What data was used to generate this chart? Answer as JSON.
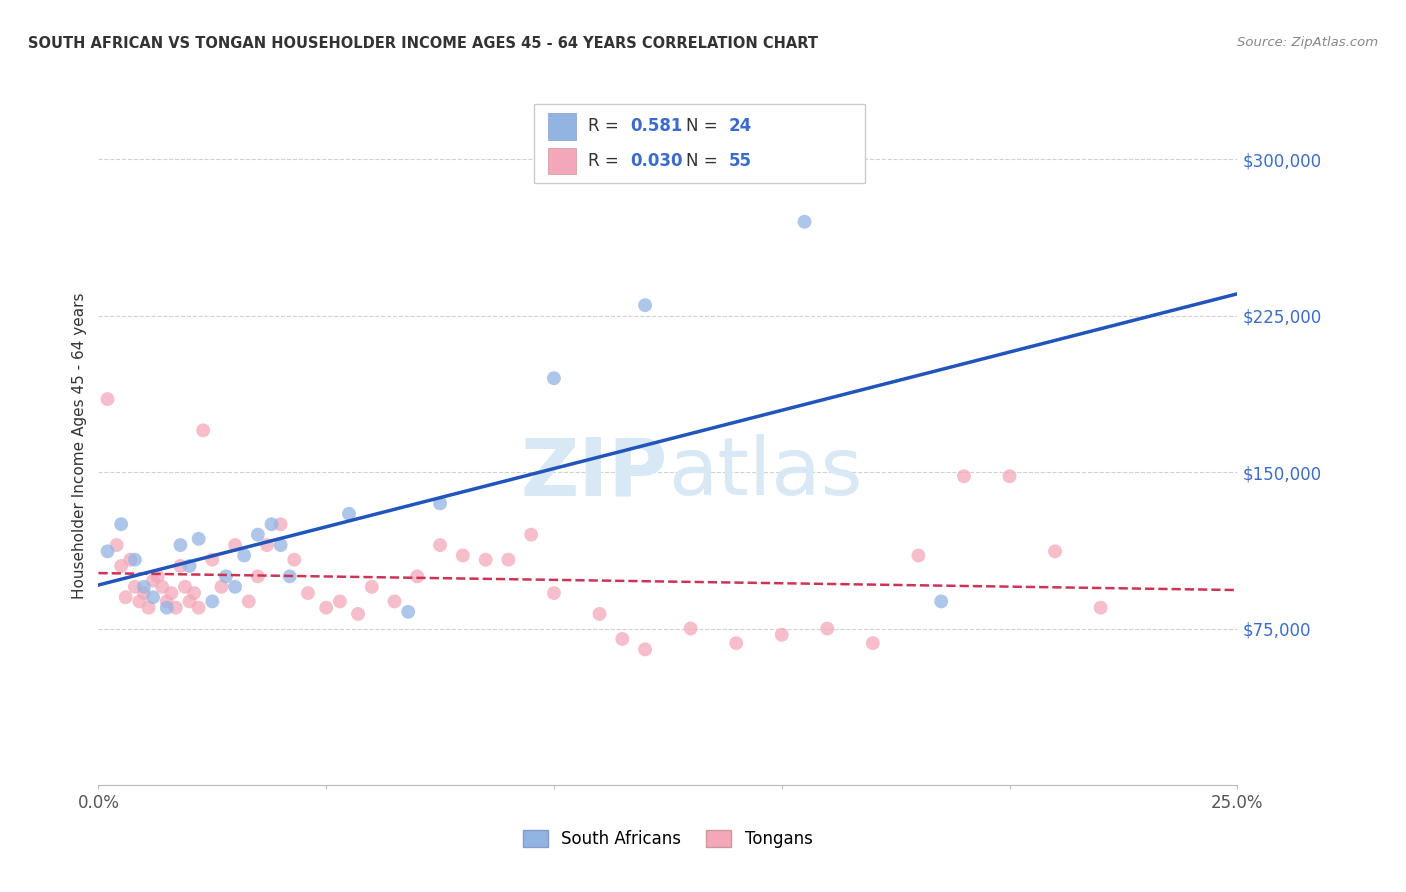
{
  "title": "SOUTH AFRICAN VS TONGAN HOUSEHOLDER INCOME AGES 45 - 64 YEARS CORRELATION CHART",
  "source": "Source: ZipAtlas.com",
  "ylabel": "Householder Income Ages 45 - 64 years",
  "xlim": [
    0.0,
    0.25
  ],
  "ylim": [
    0,
    325000
  ],
  "yticks": [
    0,
    75000,
    150000,
    225000,
    300000
  ],
  "ytick_labels": [
    "",
    "$75,000",
    "$150,000",
    "$225,000",
    "$300,000"
  ],
  "sa_label": "South Africans",
  "to_label": "Tongans",
  "blue_color": "#92B4E3",
  "pink_color": "#F4A7B9",
  "line_blue": "#2255BB",
  "line_pink": "#CC3355",
  "legend_r1_text": "R = ",
  "legend_r1_val": "0.581",
  "legend_n1_text": "N = ",
  "legend_n1_val": "24",
  "legend_r2_text": "R = ",
  "legend_r2_val": "0.030",
  "legend_n2_text": "N = ",
  "legend_n2_val": "55",
  "sa_x": [
    0.002,
    0.005,
    0.008,
    0.01,
    0.012,
    0.015,
    0.018,
    0.02,
    0.022,
    0.025,
    0.028,
    0.03,
    0.032,
    0.035,
    0.038,
    0.04,
    0.042,
    0.055,
    0.068,
    0.075,
    0.1,
    0.12,
    0.155,
    0.185
  ],
  "sa_y": [
    112000,
    125000,
    108000,
    95000,
    90000,
    85000,
    115000,
    105000,
    118000,
    88000,
    100000,
    95000,
    110000,
    120000,
    125000,
    115000,
    100000,
    130000,
    83000,
    135000,
    195000,
    230000,
    270000,
    88000
  ],
  "to_x": [
    0.002,
    0.004,
    0.005,
    0.006,
    0.007,
    0.008,
    0.009,
    0.01,
    0.011,
    0.012,
    0.013,
    0.014,
    0.015,
    0.016,
    0.017,
    0.018,
    0.019,
    0.02,
    0.021,
    0.022,
    0.023,
    0.025,
    0.027,
    0.03,
    0.033,
    0.035,
    0.037,
    0.04,
    0.043,
    0.046,
    0.05,
    0.053,
    0.057,
    0.06,
    0.065,
    0.07,
    0.075,
    0.08,
    0.085,
    0.09,
    0.095,
    0.1,
    0.11,
    0.115,
    0.12,
    0.13,
    0.14,
    0.15,
    0.16,
    0.17,
    0.18,
    0.19,
    0.2,
    0.21,
    0.22
  ],
  "to_y": [
    185000,
    115000,
    105000,
    90000,
    108000,
    95000,
    88000,
    92000,
    85000,
    98000,
    100000,
    95000,
    88000,
    92000,
    85000,
    105000,
    95000,
    88000,
    92000,
    85000,
    170000,
    108000,
    95000,
    115000,
    88000,
    100000,
    115000,
    125000,
    108000,
    92000,
    85000,
    88000,
    82000,
    95000,
    88000,
    100000,
    115000,
    110000,
    108000,
    108000,
    120000,
    92000,
    82000,
    70000,
    65000,
    75000,
    68000,
    72000,
    75000,
    68000,
    110000,
    148000,
    148000,
    112000,
    85000
  ]
}
